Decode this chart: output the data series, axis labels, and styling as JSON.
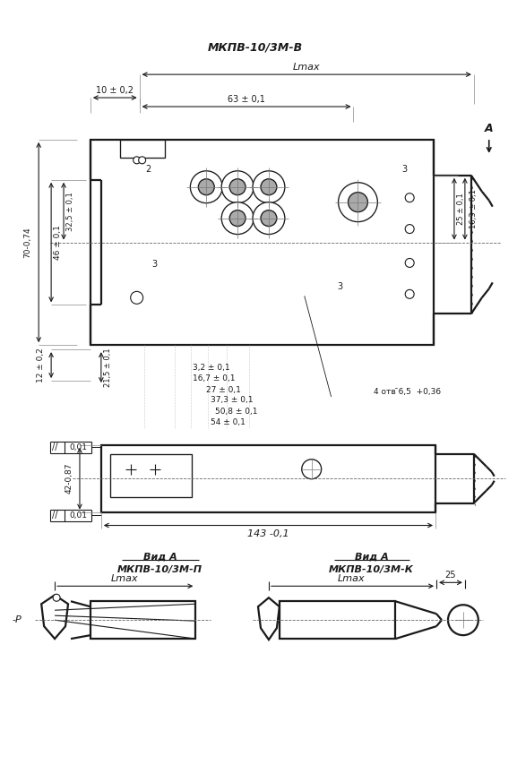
{
  "bg_color": "#ffffff",
  "line_color": "#1a1a1a",
  "text_color": "#1a1a1a",
  "fig_width": 5.77,
  "fig_height": 8.73,
  "annotations": {
    "top_title": "МКПВ-10/3М-В",
    "dim_lmax": "Lmax",
    "dim_10": "10 ± 0,2",
    "dim_63": "63 ± 0,1",
    "dim_70": "70-0,74",
    "dim_46": "46 ± 0,1",
    "dim_325": "32,5 ± 0,1",
    "dim_12": "12 ± 0,2",
    "dim_215": "21,5 ± 0,1",
    "dim_32": "3,2 ± 0,1",
    "dim_167": "16,7 ± 0,1",
    "dim_27": "27 ± 0,1",
    "dim_373": "37,3 ± 0,1",
    "dim_508": "50,8 ± 0,1",
    "dim_54": "54 ± 0,1",
    "dim_25": "25 ± 0,1",
    "dim_163": "16,3 ± 0,1",
    "dim_holes": "4 отв ̄6,5  +0,36",
    "dim_143": "143 -0,1",
    "tol_001": "0,01",
    "dim_42": "42-0,87",
    "label_A": "А",
    "label_vid_A_left": "Вид А",
    "label_mkpv_P": "МКПВ-10/3М-П",
    "label_vid_A_right": "Вид А",
    "label_mkpv_K": "МКПВ-10/3М-К",
    "label_lmax_left": "Lmax",
    "label_lmax_right": "Lmax",
    "label_25_right": "25",
    "label_P": "-Р",
    "num_2": "2",
    "num_3_top": "3",
    "num_3_mid": "3",
    "num_3_bot": "3"
  }
}
